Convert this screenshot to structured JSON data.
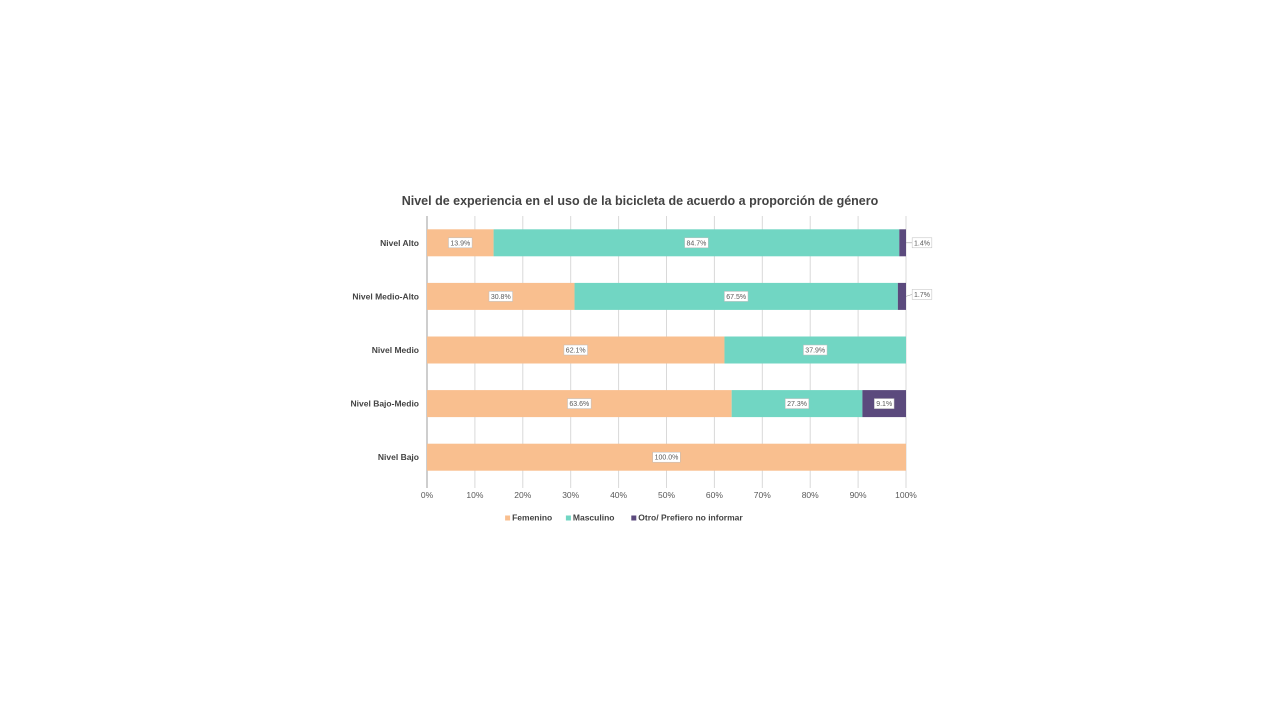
{
  "chart_data": {
    "type": "bar",
    "orientation": "horizontal",
    "stacked": "percent",
    "title": "Nivel de experiencia en el uso de la bicicleta de acuerdo a proporción de género",
    "xlabel": "",
    "ylabel": "",
    "xlim": [
      0,
      100
    ],
    "x_ticks": [
      "0%",
      "10%",
      "20%",
      "30%",
      "40%",
      "50%",
      "60%",
      "70%",
      "80%",
      "90%",
      "100%"
    ],
    "grid": true,
    "legend_position": "bottom",
    "categories": [
      "Nivel Alto",
      "Nivel Medio-Alto",
      "Nivel Medio",
      "Nivel Bajo-Medio",
      "Nivel Bajo"
    ],
    "series": [
      {
        "name": "Femenino",
        "color": "#f9bf8f",
        "values": [
          13.9,
          30.8,
          62.1,
          63.6,
          100.0
        ],
        "labels": [
          "13.9%",
          "30.8%",
          "62.1%",
          "63.6%",
          "100.0%"
        ]
      },
      {
        "name": "Masculino",
        "color": "#71d6c3",
        "values": [
          84.7,
          67.5,
          37.9,
          27.3,
          0
        ],
        "labels": [
          "84.7%",
          "67.5%",
          "37.9%",
          "27.3%",
          ""
        ]
      },
      {
        "name": "Otro/ Prefiero no informar",
        "color": "#5b4a7d",
        "values": [
          1.4,
          1.7,
          0,
          9.1,
          0
        ],
        "labels": [
          "1.4%",
          "1.7%",
          "",
          "9.1%",
          ""
        ]
      }
    ]
  }
}
